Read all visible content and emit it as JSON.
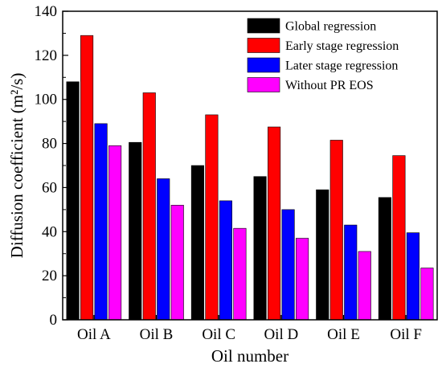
{
  "chart_data": {
    "type": "bar",
    "categories": [
      "Oil A",
      "Oil B",
      "Oil C",
      "Oil D",
      "Oil E",
      "Oil F"
    ],
    "series": [
      {
        "name": "Global regression",
        "color": "#000000",
        "values": [
          108,
          80.5,
          70,
          65,
          59,
          55.5
        ]
      },
      {
        "name": "Early stage regression",
        "color": "#ff0000",
        "values": [
          129,
          103,
          93,
          87.5,
          81.5,
          74.5
        ]
      },
      {
        "name": "Later stage regression",
        "color": "#0000ff",
        "values": [
          89,
          64,
          54,
          50,
          43,
          39.5
        ]
      },
      {
        "name": "Without PR EOS",
        "color": "#ff00ff",
        "values": [
          79,
          52,
          41.5,
          37,
          31,
          23.5
        ]
      }
    ],
    "xlabel": "Oil number",
    "ylabel": "Diffusion coefficient (m²/s)",
    "ylim": [
      0,
      140
    ],
    "yticks": [
      0,
      20,
      40,
      60,
      80,
      100,
      120,
      140
    ],
    "grid": false,
    "legend_position": "top-right"
  }
}
